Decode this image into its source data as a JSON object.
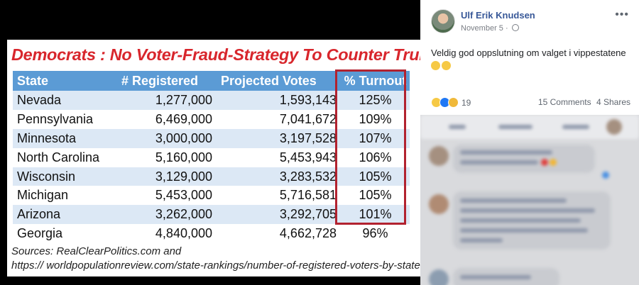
{
  "image_card": {
    "title": "Democrats : No Voter-Fraud-Strategy To Counter Trump Landslide",
    "headers": [
      "State",
      "# Registered",
      "Projected Votes",
      "% Turnout"
    ],
    "rows": [
      [
        "Nevada",
        "1,277,000",
        "1,593,143",
        "125%"
      ],
      [
        "Pennsylvania",
        "6,469,000",
        "7,041,672",
        "109%"
      ],
      [
        "Minnesota",
        "3,000,000",
        "3,197,528",
        "107%"
      ],
      [
        "North Carolina",
        "5,160,000",
        "5,453,943",
        "106%"
      ],
      [
        "Wisconsin",
        "3,129,000",
        "3,283,532",
        "105%"
      ],
      [
        "Michigan",
        "5,453,000",
        "5,716,581",
        "105%"
      ],
      [
        "Arizona",
        "3,262,000",
        "3,292,705",
        "101%"
      ],
      [
        "Georgia",
        "4,840,000",
        "4,662,728",
        "96%"
      ]
    ],
    "sources_line1": "Sources: RealClearPolitics.com and",
    "sources_line2": "https:// worldpopulationreview.com/state-rankings/number-of-registered-voters-by-state"
  },
  "post": {
    "author": "Ulf Erik Knudsen",
    "date": "November 5 ·",
    "more": "•••",
    "text": "Veldig god oppslutning om valget i vippestatene",
    "reaction_count": "19",
    "comments": "15 Comments",
    "shares": "4 Shares"
  },
  "colors": {
    "title_red": "#d8262c",
    "header_blue": "#5b9bd5",
    "row_blue": "#dce8f5",
    "highlight_box": "#b2222f",
    "fb_link": "#385898"
  }
}
